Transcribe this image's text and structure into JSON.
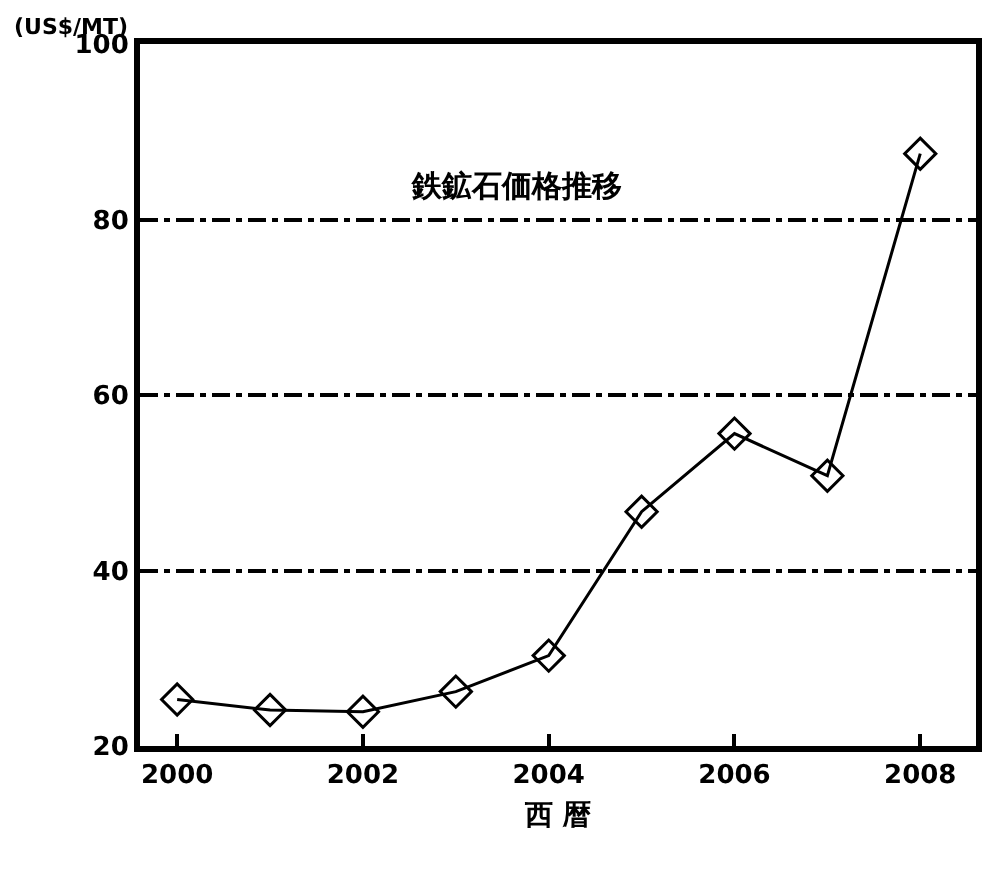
{
  "chart_data": {
    "type": "line",
    "title": "鉄鉱石価格推移",
    "xlabel": "西 暦",
    "ylabel": "(US$/MT)",
    "x": [
      2000,
      2001,
      2002,
      2003,
      2004,
      2005,
      2006,
      2007,
      2008
    ],
    "series": [
      {
        "color": "#000000",
        "values": [
          25.3,
          24.1,
          23.9,
          26.2,
          30.3,
          46.7,
          55.6,
          50.8,
          87.5
        ]
      }
    ],
    "xlim": [
      1999.6,
      2008.6
    ],
    "xticks": [
      2000,
      2002,
      2004,
      2006,
      2008
    ],
    "ylim": [
      20,
      100
    ],
    "yticks": [
      20,
      40,
      60,
      80,
      100
    ],
    "grid": "y",
    "marker": "diamond",
    "line_style": "solid"
  }
}
